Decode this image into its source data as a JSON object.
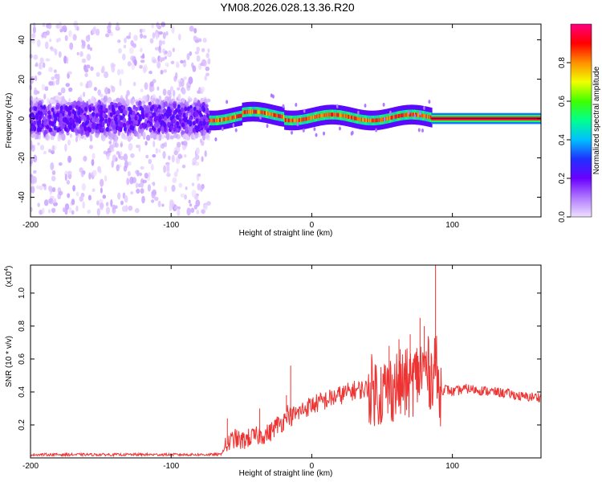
{
  "title": "YM08.2026.028.13.36.R20",
  "chart_data": [
    {
      "type": "heatmap",
      "title": "YM08.2026.028.13.36.R20",
      "xlabel": "Height of straight line (km)",
      "ylabel": "Frequency (Hz)",
      "xlim": [
        -200,
        163
      ],
      "ylim": [
        -50,
        48
      ],
      "xticks": [
        -200,
        -100,
        0,
        100
      ],
      "yticks": [
        -40,
        -20,
        0,
        20,
        40
      ],
      "colorbar": {
        "label": "Normalized spectral amplitude",
        "range": [
          0,
          1
        ],
        "ticks": [
          "0.0",
          "0.2",
          "0.4",
          "0.6",
          "0.8"
        ],
        "colormap": "rainbow-violet-to-pink",
        "colors": [
          "#efe0ff",
          "#b079ff",
          "#6a00ff",
          "#2030ff",
          "#00c0ff",
          "#00ff90",
          "#40ff00",
          "#f0ff00",
          "#ff9000",
          "#ff0000",
          "#ff0080"
        ]
      },
      "regions": [
        {
          "x_range": [
            -200,
            -73
          ],
          "description": "broadband noise",
          "center_freq": 0,
          "spread_hz": 48,
          "level": 0.12
        },
        {
          "x_range": [
            -73,
            85
          ],
          "description": "narrowband signal with wander",
          "center_freq": 0.5,
          "spread_hz": 5,
          "level": 0.6
        },
        {
          "x_range": [
            85,
            163
          ],
          "description": "strong stable tone",
          "center_freq": 0,
          "spread_hz": 2,
          "level": 0.95
        }
      ]
    },
    {
      "type": "line",
      "xlabel": "Height of straight line (km)",
      "ylabel": "SNR (10 * v/v)",
      "y_scale_label": "(x10",
      "y_scale_exp": "4",
      "xlim": [
        -200,
        163
      ],
      "ylim": [
        0,
        1.17
      ],
      "xticks": [
        -200,
        -100,
        0,
        100
      ],
      "yticks": [
        "0.2",
        "0.4",
        "0.6",
        "0.8",
        "1.0"
      ],
      "color": "#ee3333",
      "series": [
        {
          "x": [
            -200,
            -180,
            -160,
            -140,
            -120,
            -100,
            -80,
            -65,
            -60,
            -55,
            -50,
            -45,
            -40,
            -35,
            -30,
            -25,
            -20,
            -18,
            -15,
            -10,
            -5,
            0,
            10,
            20,
            30,
            40,
            50,
            60,
            70,
            75,
            80,
            85,
            88,
            90,
            95,
            100,
            110,
            120,
            130,
            140,
            150,
            163
          ],
          "y": [
            0.02,
            0.02,
            0.02,
            0.02,
            0.02,
            0.02,
            0.02,
            0.02,
            0.08,
            0.12,
            0.1,
            0.12,
            0.13,
            0.14,
            0.15,
            0.2,
            0.22,
            0.28,
            0.25,
            0.27,
            0.3,
            0.32,
            0.35,
            0.38,
            0.41,
            0.42,
            0.4,
            0.44,
            0.45,
            0.5,
            0.55,
            0.5,
            0.6,
            0.4,
            0.42,
            0.4,
            0.42,
            0.41,
            0.4,
            0.39,
            0.37,
            0.37
          ],
          "spikes": [
            {
              "x": -60,
              "y": 0.24
            },
            {
              "x": -37,
              "y": 0.3
            },
            {
              "x": -18,
              "y": 0.38
            },
            {
              "x": -15,
              "y": 0.56
            },
            {
              "x": 55,
              "y": 0.68
            },
            {
              "x": 62,
              "y": 0.72
            },
            {
              "x": 70,
              "y": 0.75
            },
            {
              "x": 75,
              "y": 0.62
            },
            {
              "x": 77,
              "y": 0.85
            },
            {
              "x": 80,
              "y": 0.8
            },
            {
              "x": 88,
              "y": 1.17
            }
          ]
        }
      ]
    }
  ]
}
